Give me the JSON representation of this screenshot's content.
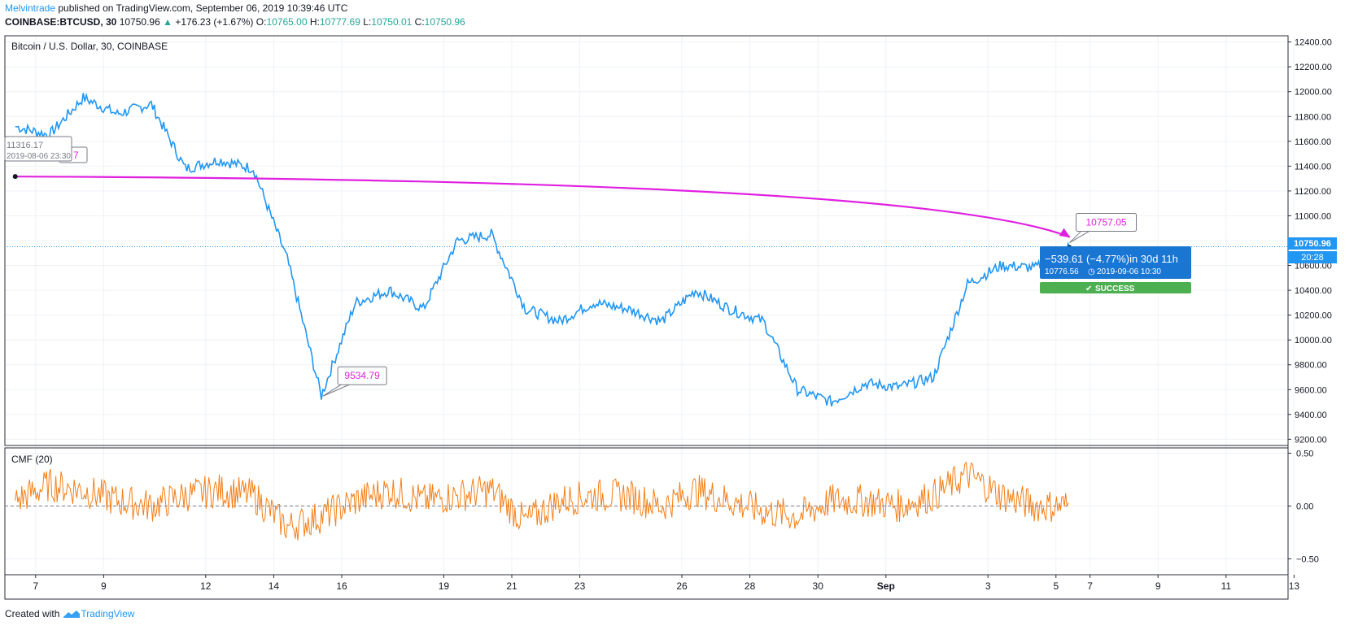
{
  "header": {
    "author": "Melvintrade",
    "published": " published on TradingView.com, September 06, 2019 10:39:46 UTC",
    "symbol": "COINBASE:BTCUSD, 30",
    "last": "10750.96",
    "change": "+176.23 (+1.67%)",
    "o_label": "O:",
    "o": "10765.00",
    "h_label": "H:",
    "h": "10777.69",
    "l_label": "L:",
    "l": "10750.01",
    "c_label": "C:",
    "c": "10750.96"
  },
  "footer": {
    "created_with": "Created with",
    "brand": "TradingView"
  },
  "colors": {
    "price": "#2196f3",
    "cmf": "#f57f17",
    "arrow": "#e020e0",
    "success": "#4caf50",
    "stats_box": "#1976d2",
    "grid": "#eef1f5"
  },
  "chart_data": [
    {
      "type": "line",
      "title": "Bitcoin / U.S. Dollar, 30, COINBASE",
      "ylim": [
        9150,
        12450
      ],
      "grid": true,
      "x_ticks": [
        "7",
        "9",
        "12",
        "14",
        "16",
        "19",
        "21",
        "23",
        "26",
        "28",
        "30",
        "Sep",
        "3",
        "5",
        "7",
        "9",
        "11",
        "13"
      ],
      "y_ticks": [
        "12400.00",
        "12200.00",
        "12000.00",
        "11800.00",
        "11600.00",
        "11400.00",
        "11200.00",
        "11000.00",
        "10800.00",
        "10600.00",
        "10400.00",
        "10200.00",
        "10000.00",
        "9800.00",
        "9600.00",
        "9400.00",
        "9200.00"
      ],
      "series": [
        {
          "x": [
            "Aug 6",
            "Aug 7",
            "Aug 8",
            "Aug 9",
            "Aug 10",
            "Aug 11",
            "Aug 12",
            "Aug 13",
            "Aug 14",
            "Aug 15",
            "Aug 16",
            "Aug 17",
            "Aug 18",
            "Aug 19",
            "Aug 20",
            "Aug 21",
            "Aug 22",
            "Aug 23",
            "Aug 24",
            "Aug 25",
            "Aug 26",
            "Aug 27",
            "Aug 28",
            "Aug 29",
            "Aug 30",
            "Aug 31",
            "Sep 1",
            "Sep 2",
            "Sep 3",
            "Sep 4",
            "Sep 5",
            "Sep 6"
          ],
          "values": [
            11720,
            11650,
            11950,
            11820,
            11900,
            11380,
            11450,
            11380,
            10650,
            9550,
            10300,
            10400,
            10250,
            10800,
            10850,
            10250,
            10150,
            10300,
            10250,
            10150,
            10400,
            10250,
            10150,
            9600,
            9500,
            9650,
            9620,
            9700,
            10450,
            10600,
            10580,
            10751
          ]
        }
      ],
      "last_price_label": "10750.96",
      "countdown_label": "20:28",
      "annotations": [
        {
          "label": "9534.79",
          "date": "Aug 15",
          "value": 9534.79
        },
        {
          "label": "10757.05",
          "date": "Sep 6",
          "value": 10757.05
        },
        {
          "label": "11316.17",
          "sublabel": "2019-08-06 23:30",
          "date": "Aug 6",
          "value": 11316.17,
          "cut_text": "7"
        }
      ],
      "arrow": {
        "from_date": "Aug 6",
        "from_value": 11316.17,
        "to_date": "Sep 6",
        "to_value": 10776.56
      },
      "stats": {
        "line1": "−539.61 (−4.77%)in 30d 11h",
        "line2_price": "10776.56",
        "line2_date": "2019-09-06  10:30",
        "badge": "SUCCESS"
      }
    },
    {
      "type": "line",
      "title": "CMF (20)",
      "ylim": [
        -0.65,
        0.55
      ],
      "y_ticks": [
        "0.50",
        "0.00",
        "−0.50"
      ],
      "series": [
        {
          "x": [
            "Aug 6",
            "Aug 7",
            "Aug 8",
            "Aug 9",
            "Aug 10",
            "Aug 11",
            "Aug 12",
            "Aug 13",
            "Aug 14",
            "Aug 15",
            "Aug 16",
            "Aug 17",
            "Aug 18",
            "Aug 19",
            "Aug 20",
            "Aug 21",
            "Aug 22",
            "Aug 23",
            "Aug 24",
            "Aug 25",
            "Aug 26",
            "Aug 27",
            "Aug 28",
            "Aug 29",
            "Aug 30",
            "Aug 31",
            "Sep 1",
            "Sep 2",
            "Sep 3",
            "Sep 4",
            "Sep 5",
            "Sep 6"
          ],
          "values": [
            0.05,
            0.2,
            0.15,
            0.05,
            0.0,
            0.1,
            0.15,
            0.1,
            -0.2,
            -0.1,
            0.05,
            0.15,
            0.05,
            0.1,
            0.15,
            -0.15,
            0.05,
            0.1,
            0.1,
            0.0,
            0.15,
            0.05,
            -0.05,
            -0.1,
            0.05,
            0.05,
            0.0,
            0.1,
            0.3,
            0.1,
            0.0,
            0.0
          ]
        }
      ]
    }
  ]
}
